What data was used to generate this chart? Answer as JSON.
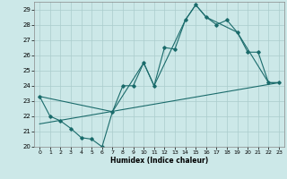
{
  "title": "",
  "xlabel": "Humidex (Indice chaleur)",
  "ylabel": "",
  "background_color": "#cce8e8",
  "grid_color": "#aacccc",
  "line_color": "#1a6b6b",
  "ylim": [
    20,
    29.5
  ],
  "xlim": [
    -0.5,
    23.5
  ],
  "yticks": [
    20,
    21,
    22,
    23,
    24,
    25,
    26,
    27,
    28,
    29
  ],
  "xticks": [
    0,
    1,
    2,
    3,
    4,
    5,
    6,
    7,
    8,
    9,
    10,
    11,
    12,
    13,
    14,
    15,
    16,
    17,
    18,
    19,
    20,
    21,
    22,
    23
  ],
  "line1_x": [
    0,
    1,
    2,
    3,
    4,
    5,
    6,
    7,
    8,
    9,
    10,
    11,
    12,
    13,
    14,
    15,
    16,
    17,
    18,
    19,
    20,
    21,
    22,
    23
  ],
  "line1_y": [
    23.3,
    22.0,
    21.7,
    21.2,
    20.6,
    20.5,
    20.0,
    22.3,
    24.0,
    24.0,
    25.5,
    24.0,
    26.5,
    26.4,
    28.3,
    29.3,
    28.5,
    28.0,
    28.3,
    27.5,
    26.2,
    26.2,
    24.2,
    24.2
  ],
  "line2_x": [
    0,
    7,
    10,
    11,
    14,
    15,
    16,
    19,
    22,
    23
  ],
  "line2_y": [
    23.3,
    22.3,
    25.5,
    24.0,
    28.3,
    29.3,
    28.5,
    27.5,
    24.2,
    24.2
  ],
  "line3_x": [
    0,
    23
  ],
  "line3_y": [
    21.5,
    24.2
  ],
  "figsize": [
    3.2,
    2.0
  ],
  "dpi": 100
}
